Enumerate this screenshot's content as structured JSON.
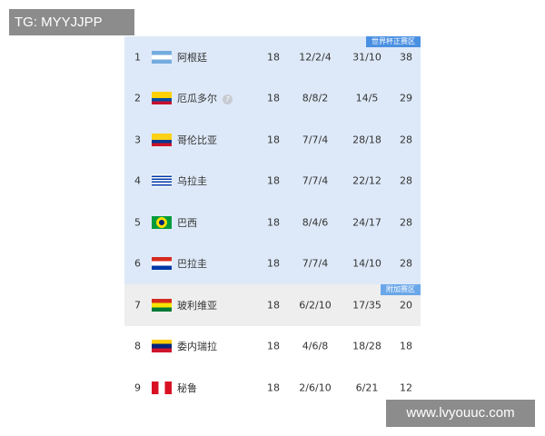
{
  "watermarks": {
    "top_left": "TG: MYYJJPP",
    "bottom_right": "www.lvyouuc.com"
  },
  "zones": {
    "world_cup": "世界杯正赛区",
    "playoff": "附加赛区"
  },
  "colors": {
    "world_cup_bg": "#dde9f8",
    "playoff_bg": "#eeeeee",
    "tag": "#4a90e2"
  },
  "rows": [
    {
      "rank": "1",
      "flag": "argentina-flag",
      "team": "阿根廷",
      "played": "18",
      "record": "12/2/4",
      "goals": "31/10",
      "points": "38"
    },
    {
      "rank": "2",
      "flag": "ecuador-flag",
      "team": "厄瓜多尔",
      "played": "18",
      "record": "8/8/2",
      "goals": "14/5",
      "points": "29",
      "info_icon": "?"
    },
    {
      "rank": "3",
      "flag": "colombia-flag",
      "team": "哥伦比亚",
      "played": "18",
      "record": "7/7/4",
      "goals": "28/18",
      "points": "28"
    },
    {
      "rank": "4",
      "flag": "uruguay-flag",
      "team": "乌拉圭",
      "played": "18",
      "record": "7/7/4",
      "goals": "22/12",
      "points": "28"
    },
    {
      "rank": "5",
      "flag": "brazil-flag",
      "team": "巴西",
      "played": "18",
      "record": "8/4/6",
      "goals": "24/17",
      "points": "28"
    },
    {
      "rank": "6",
      "flag": "paraguay-flag",
      "team": "巴拉圭",
      "played": "18",
      "record": "7/7/4",
      "goals": "14/10",
      "points": "28"
    },
    {
      "rank": "7",
      "flag": "bolivia-flag",
      "team": "玻利维亚",
      "played": "18",
      "record": "6/2/10",
      "goals": "17/35",
      "points": "20"
    },
    {
      "rank": "8",
      "flag": "venezuela-flag",
      "team": "委内瑞拉",
      "played": "18",
      "record": "4/6/8",
      "goals": "18/28",
      "points": "18"
    },
    {
      "rank": "9",
      "flag": "peru-flag",
      "team": "秘鲁",
      "played": "18",
      "record": "2/6/10",
      "goals": "6/21",
      "points": "12"
    }
  ]
}
